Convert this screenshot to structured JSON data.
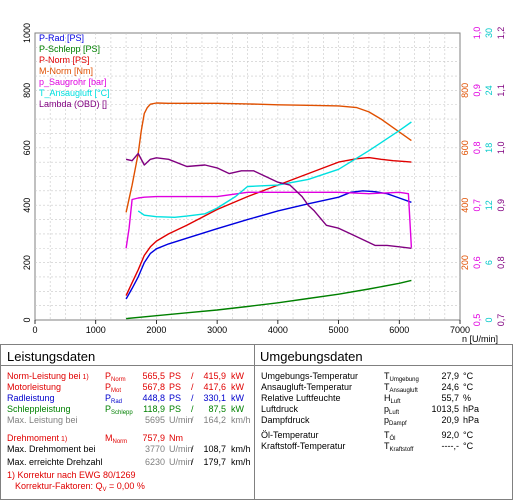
{
  "chart_data": {
    "type": "line",
    "x_axis": {
      "label": "n [U/min]",
      "min": 0,
      "max": 7000,
      "ticks": [
        0,
        1000,
        2000,
        3000,
        4000,
        5000,
        6000,
        7000
      ]
    },
    "y_left": {
      "min": 0,
      "max": 1000,
      "ticks": [
        0,
        200,
        400,
        600,
        800,
        1000
      ]
    },
    "right_scales": [
      {
        "color": "#e05000",
        "ticks": [
          {
            "v": 200,
            "t": "200"
          },
          {
            "v": 400,
            "t": "400"
          },
          {
            "v": 600,
            "t": "600"
          },
          {
            "v": 800,
            "t": "800"
          }
        ]
      },
      {
        "color": "#e000e0",
        "ticks": [
          {
            "v": 0,
            "t": "0,5"
          },
          {
            "v": 200,
            "t": "0,6"
          },
          {
            "v": 400,
            "t": "0,7"
          },
          {
            "v": 600,
            "t": "0,8"
          },
          {
            "v": 800,
            "t": "0,9"
          },
          {
            "v": 1000,
            "t": "1,0"
          }
        ]
      },
      {
        "color": "#00c8c8",
        "ticks": [
          {
            "v": 0,
            "t": "0"
          },
          {
            "v": 200,
            "t": "6"
          },
          {
            "v": 400,
            "t": "12"
          },
          {
            "v": 600,
            "t": "18"
          },
          {
            "v": 800,
            "t": "24"
          },
          {
            "v": 1000,
            "t": "30"
          }
        ]
      },
      {
        "color": "#800080",
        "ticks": [
          {
            "v": 0,
            "t": "0,7"
          },
          {
            "v": 200,
            "t": "0,8"
          },
          {
            "v": 400,
            "t": "0,9"
          },
          {
            "v": 600,
            "t": "1,0"
          },
          {
            "v": 800,
            "t": "1,1"
          },
          {
            "v": 1000,
            "t": "1,2"
          }
        ]
      }
    ],
    "legend": [
      {
        "name": "P-Rad [PS]",
        "color": "#0000e0"
      },
      {
        "name": "P-Schlepp [PS]",
        "color": "#008000"
      },
      {
        "name": "P-Norm [PS]",
        "color": "#e00000"
      },
      {
        "name": "M-Norm [Nm]",
        "color": "#e05000"
      },
      {
        "name": "p_Saugrohr [bar]",
        "color": "#e000e0"
      },
      {
        "name": "T_Ansaugluft [°C]",
        "color": "#00e0e0"
      },
      {
        "name": "Lambda (OBD) []",
        "color": "#800080"
      }
    ],
    "series": [
      {
        "color": "#0000e0",
        "x": [
          1500,
          1600,
          1700,
          1800,
          1900,
          2000,
          2200,
          2500,
          3000,
          3500,
          4000,
          4500,
          5000,
          5200,
          5400,
          5600,
          5800,
          6000,
          6200
        ],
        "y": [
          73,
          110,
          150,
          200,
          232,
          248,
          265,
          285,
          318,
          350,
          380,
          405,
          428,
          445,
          450,
          447,
          440,
          425,
          410
        ]
      },
      {
        "color": "#008000",
        "x": [
          1500,
          2000,
          2500,
          3000,
          3500,
          4000,
          4500,
          5000,
          5500,
          6000,
          6200
        ],
        "y": [
          5,
          15,
          25,
          35,
          47,
          60,
          75,
          90,
          108,
          128,
          138
        ]
      },
      {
        "color": "#e00000",
        "x": [
          1500,
          1600,
          1700,
          1800,
          1900,
          2000,
          2200,
          2500,
          3000,
          3500,
          4000,
          4500,
          5000,
          5300,
          5500,
          5700,
          5900,
          6100,
          6200
        ],
        "y": [
          85,
          130,
          175,
          225,
          255,
          275,
          300,
          330,
          385,
          430,
          470,
          510,
          550,
          562,
          566,
          560,
          555,
          552,
          550
        ]
      },
      {
        "color": "#e05000",
        "x": [
          1500,
          1600,
          1700,
          1750,
          1800,
          1850,
          1900,
          2000,
          2200,
          2500,
          3000,
          3500,
          4000,
          4500,
          5000,
          5300,
          5500,
          5700,
          5900,
          6100,
          6200
        ],
        "y": [
          375,
          470,
          580,
          660,
          720,
          740,
          752,
          756,
          755,
          755,
          755,
          753,
          750,
          748,
          746,
          740,
          725,
          700,
          670,
          640,
          625
        ]
      },
      {
        "color": "#e000e0",
        "x": [
          1500,
          1550,
          1600,
          1700,
          1800,
          2000,
          2500,
          3000,
          3500,
          4000,
          4500,
          5000,
          5500,
          6000,
          6150,
          6200
        ],
        "y": [
          250,
          320,
          420,
          425,
          428,
          430,
          430,
          430,
          445,
          445,
          445,
          445,
          440,
          445,
          440,
          252
        ]
      },
      {
        "color": "#00e0e0",
        "x": [
          1700,
          1800,
          2000,
          2300,
          2500,
          2800,
          3000,
          3300,
          3500,
          4000,
          4500,
          5000,
          5500,
          6000,
          6200
        ],
        "y": [
          380,
          365,
          360,
          358,
          362,
          370,
          390,
          430,
          465,
          470,
          490,
          525,
          590,
          660,
          690
        ]
      },
      {
        "color": "#800080",
        "x": [
          1500,
          1600,
          1700,
          1800,
          1900,
          2000,
          2200,
          2500,
          2800,
          3000,
          3200,
          3400,
          3600,
          3800,
          4000,
          4200,
          4400,
          4500,
          4600,
          4800,
          5000,
          5200,
          5400,
          5600,
          5800,
          6000,
          6200
        ],
        "y": [
          560,
          555,
          580,
          540,
          560,
          565,
          560,
          535,
          540,
          530,
          510,
          520,
          520,
          500,
          480,
          470,
          430,
          400,
          380,
          330,
          320,
          300,
          280,
          260,
          260,
          255,
          250
        ]
      }
    ]
  },
  "panel": {
    "left_title": "Leistungsdaten",
    "right_title": "Umgebungsdaten",
    "rows": [
      {
        "label": "Norm-Leistung bei",
        "sup": "1)",
        "sym": "P",
        "sub": "Norm",
        "v1": "565,5",
        "u1": "PS",
        "sep": "/",
        "v2": "415,9",
        "u2": "kW",
        "cls": "red"
      },
      {
        "label": "Motorleistung",
        "sup": "",
        "sym": "P",
        "sub": "Mot",
        "v1": "567,8",
        "u1": "PS",
        "sep": "/",
        "v2": "417,6",
        "u2": "kW",
        "cls": "red"
      },
      {
        "label": "Radleistung",
        "sup": "",
        "sym": "P",
        "sub": "Rad",
        "v1": "448,8",
        "u1": "PS",
        "sep": "/",
        "v2": "330,1",
        "u2": "kW",
        "cls": "blue"
      },
      {
        "label": "Schleppleistung",
        "sup": "",
        "sym": "P",
        "sub": "Schlepp",
        "v1": "118,9",
        "u1": "PS",
        "sep": "/",
        "v2": "87,5",
        "u2": "kW",
        "cls": "green"
      },
      {
        "label": "Max. Leistung bei",
        "sup": "",
        "sym": "",
        "sub": "",
        "v1": "5695",
        "u1": "U/min",
        "sep": "/",
        "v2": "164,2",
        "u2": "km/h",
        "cls": "grey"
      }
    ],
    "torque": {
      "label": "Drehmoment",
      "sup": "1)",
      "sym": "M",
      "sub": "Norm",
      "v1": "757,9",
      "u1": "Nm"
    },
    "torque_rows": [
      {
        "label": "Max. Drehmoment bei",
        "v1": "3770",
        "u1": "U/min",
        "sep": "/",
        "v2": "108,7",
        "u2": "km/h"
      },
      {
        "label": "Max. erreichte Drehzahl",
        "v1": "6230",
        "u1": "U/min",
        "sep": "/",
        "v2": "179,7",
        "u2": "km/h"
      }
    ],
    "footnote1": "1) Korrektur nach EWG 80/1269",
    "footnote2_a": "Korrektur-Faktoren: Q",
    "footnote2_sub": "V",
    "footnote2_b": " =   0,00 %",
    "env_rows": [
      {
        "label": "Umgebungs-Temperatur",
        "sym": "T",
        "sub": "Umgebung",
        "v": "27,9",
        "u": "°C"
      },
      {
        "label": "Ansaugluft-Temperatur",
        "sym": "T",
        "sub": "Ansaugluft",
        "v": "24,6",
        "u": "°C"
      },
      {
        "label": "Relative Luftfeuchte",
        "sym": "H",
        "sub": "Luft",
        "v": "55,7",
        "u": "%"
      },
      {
        "label": "Luftdruck",
        "sym": "p",
        "sub": "Luft",
        "v": "1013,5",
        "u": "hPa"
      },
      {
        "label": "Dampfdruck",
        "sym": "p",
        "sub": "Dampf",
        "v": "20,9",
        "u": "hPa"
      },
      {
        "label": "Öl-Temperatur",
        "sym": "T",
        "sub": "Öl",
        "v": "92,0",
        "u": "°C"
      },
      {
        "label": "Kraftstoff-Temperatur",
        "sym": "T",
        "sub": "Kraftstoff",
        "v": "----,-",
        "u": "°C"
      }
    ]
  }
}
